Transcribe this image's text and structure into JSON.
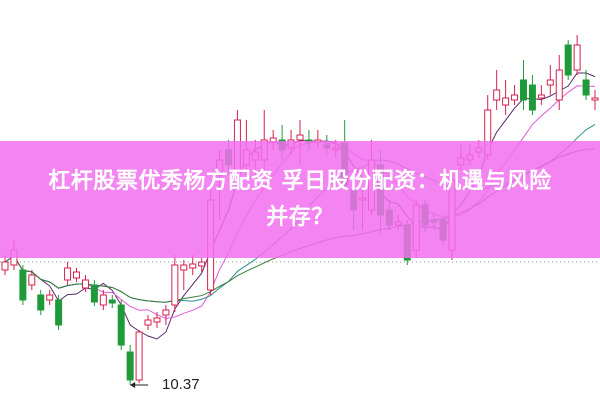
{
  "title_line1": "杠杆股票优秀杨方配资 孚日股份配资：机遇与风险",
  "title_line2": "并存？",
  "chart_data": {
    "type": "candlestick",
    "annotation_low": "10.37",
    "colors": {
      "up": "#d6204e",
      "down": "#1f9a3a",
      "ma5": "#5a2a6e",
      "ma10": "#e05ad8",
      "ma20": "#2c8c8c",
      "ma60": "#3a7a3a",
      "banner": "#f26eee"
    },
    "ohlc": [
      [
        11.52,
        11.6,
        11.67,
        11.47
      ],
      [
        11.57,
        11.72,
        11.82,
        11.52
      ],
      [
        11.52,
        11.22,
        11.57,
        11.17
      ],
      [
        11.37,
        11.47,
        11.52,
        11.32
      ],
      [
        11.27,
        11.12,
        11.32,
        11.07
      ],
      [
        11.22,
        11.27,
        11.32,
        11.17
      ],
      [
        11.22,
        10.97,
        11.27,
        10.92
      ],
      [
        11.42,
        11.54,
        11.6,
        11.37
      ],
      [
        11.44,
        11.5,
        11.54,
        11.4
      ],
      [
        11.34,
        11.42,
        11.47,
        11.3
      ],
      [
        11.37,
        11.2,
        11.42,
        11.16
      ],
      [
        11.17,
        11.27,
        11.32,
        11.12
      ],
      [
        11.22,
        11.19,
        11.27,
        11.14
      ],
      [
        11.17,
        10.77,
        11.22,
        10.72
      ],
      [
        10.7,
        10.42,
        10.77,
        10.37
      ],
      [
        10.42,
        10.9,
        10.92,
        10.39
      ],
      [
        10.97,
        11.02,
        11.07,
        10.92
      ],
      [
        11.0,
        11.04,
        11.1,
        10.94
      ],
      [
        11.07,
        11.12,
        11.17,
        10.97
      ],
      [
        11.17,
        11.57,
        11.67,
        11.1
      ],
      [
        11.52,
        11.57,
        11.62,
        11.32
      ],
      [
        11.54,
        11.58,
        11.67,
        11.47
      ],
      [
        11.56,
        11.6,
        11.64,
        11.5
      ],
      [
        11.32,
        12.22,
        12.32,
        11.27
      ],
      [
        12.47,
        12.62,
        12.72,
        12.02
      ],
      [
        12.72,
        12.57,
        12.82,
        12.47
      ],
      [
        12.52,
        13.02,
        13.12,
        12.42
      ],
      [
        12.57,
        12.72,
        13.02,
        12.47
      ],
      [
        12.62,
        12.7,
        12.82,
        12.42
      ],
      [
        12.62,
        12.82,
        13.12,
        12.52
      ],
      [
        12.8,
        12.84,
        12.92,
        12.72
      ],
      [
        12.82,
        12.72,
        12.97,
        12.62
      ],
      [
        12.74,
        12.82,
        12.92,
        12.67
      ],
      [
        12.82,
        12.87,
        13.02,
        12.57
      ],
      [
        12.82,
        12.8,
        12.92,
        12.72
      ],
      [
        12.8,
        12.82,
        12.92,
        12.74
      ],
      [
        12.77,
        12.74,
        12.87,
        12.67
      ],
      [
        12.72,
        12.74,
        12.82,
        12.64
      ],
      [
        12.79,
        12.37,
        13.02,
        12.32
      ],
      [
        12.32,
        12.12,
        12.42,
        11.92
      ],
      [
        12.22,
        12.24,
        12.32,
        11.92
      ],
      [
        12.12,
        12.62,
        12.82,
        12.07
      ],
      [
        12.57,
        12.07,
        12.72,
        11.87
      ],
      [
        12.12,
        11.97,
        12.22,
        11.92
      ],
      [
        11.97,
        12.0,
        12.07,
        11.92
      ],
      [
        11.97,
        11.62,
        12.02,
        11.57
      ],
      [
        11.72,
        12.17,
        12.22,
        11.64
      ],
      [
        12.17,
        11.97,
        12.22,
        11.9
      ],
      [
        12.02,
        12.0,
        12.1,
        11.92
      ],
      [
        12.02,
        11.82,
        12.07,
        11.77
      ],
      [
        11.72,
        12.42,
        12.52,
        11.62
      ],
      [
        12.57,
        12.64,
        12.77,
        12.52
      ],
      [
        12.62,
        12.67,
        12.77,
        12.57
      ],
      [
        12.7,
        12.74,
        12.82,
        12.64
      ],
      [
        12.67,
        13.12,
        13.27,
        12.62
      ],
      [
        13.22,
        13.32,
        13.52,
        13.12
      ],
      [
        13.17,
        13.24,
        13.42,
        13.07
      ],
      [
        13.22,
        13.27,
        13.37,
        13.17
      ],
      [
        13.42,
        13.22,
        13.62,
        13.12
      ],
      [
        13.37,
        13.12,
        13.47,
        13.07
      ],
      [
        13.24,
        13.27,
        13.37,
        13.17
      ],
      [
        13.37,
        13.42,
        13.57,
        13.27
      ],
      [
        13.22,
        13.52,
        13.67,
        13.12
      ],
      [
        13.77,
        13.47,
        13.82,
        13.42
      ],
      [
        13.52,
        13.77,
        13.87,
        13.47
      ],
      [
        13.42,
        13.27,
        13.52,
        13.22
      ],
      [
        13.22,
        13.24,
        13.32,
        13.12
      ]
    ]
  }
}
